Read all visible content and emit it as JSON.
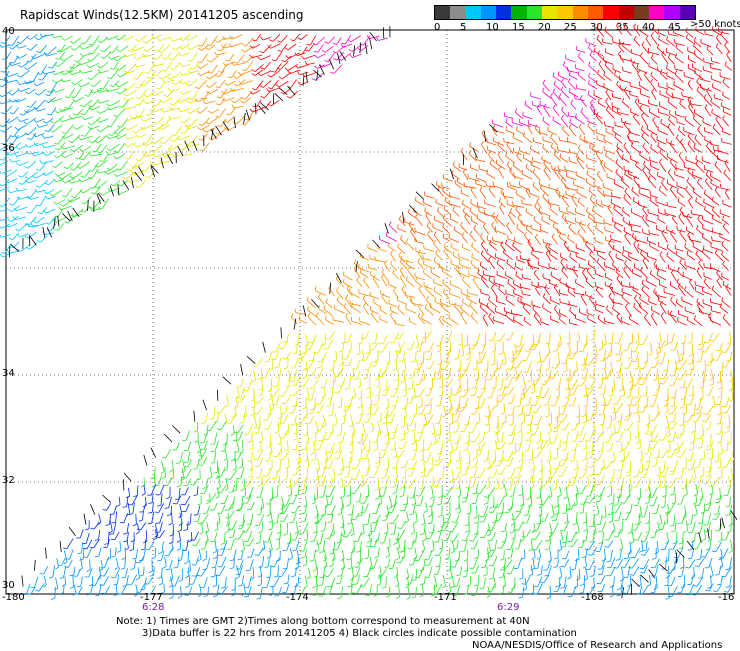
{
  "title": "Rapidscat Winds(12.5KM) 20141205 ascending",
  "legend": {
    "colors": [
      "#3a3a3a",
      "#8c8c8c",
      "#00c8ff",
      "#0096ff",
      "#0030e6",
      "#00b400",
      "#28e628",
      "#e6e600",
      "#ffc800",
      "#ff8c00",
      "#ff5a00",
      "#ff0000",
      "#c00000",
      "#783c1e",
      "#ff00c8",
      "#b400ff",
      "#5a00b4"
    ],
    "labels": [
      "0",
      "5",
      "10",
      "15",
      "20",
      "25",
      "30",
      "35",
      "40",
      "45"
    ],
    "unit": ">50 knots"
  },
  "axes": {
    "lat_labels": [
      "40",
      "36",
      "34",
      "32",
      "30"
    ],
    "lon_labels": [
      "-180",
      "-177",
      "-174",
      "-171",
      "-168",
      "-16"
    ],
    "time_labels": [
      "6:28",
      "6:29"
    ]
  },
  "notes": {
    "line1": "Note: 1) Times are GMT 2)Times along bottom correspond to measurement at 40N",
    "line2": "3)Data buffer is 22 hrs from 20141205 4) Black circles indicate possible contamination",
    "credit": "NOAA/NESDIS/Office of Research and Applications"
  }
}
